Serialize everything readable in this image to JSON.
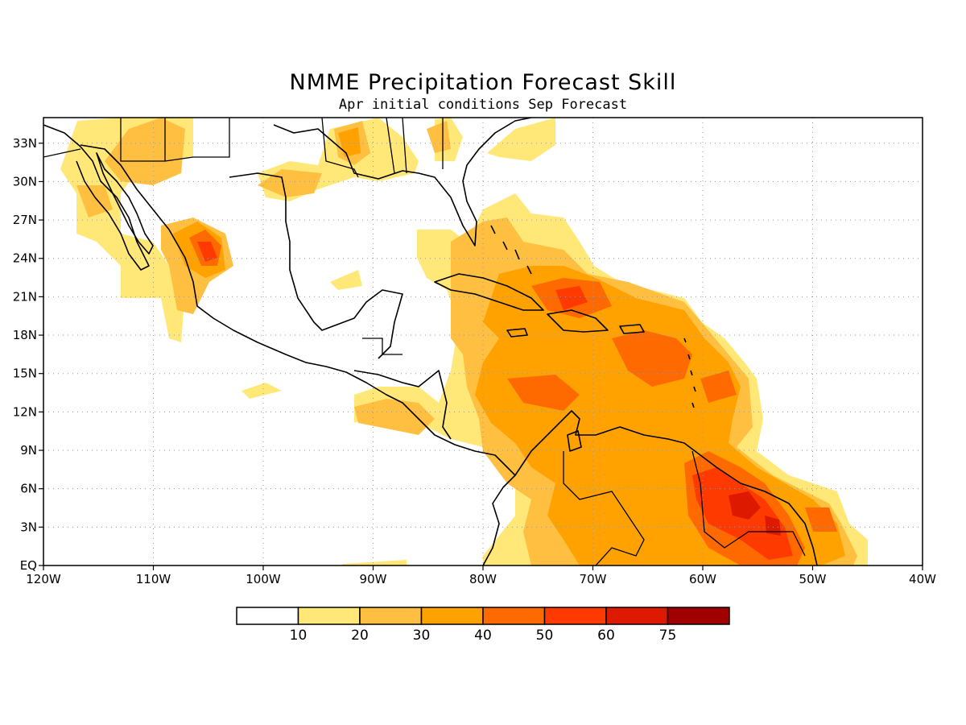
{
  "title": "NMME Precipitation Forecast Skill",
  "subtitle": "Apr initial conditions  Sep Forecast",
  "map": {
    "lon_range": [
      -120,
      -40
    ],
    "lat_range": [
      0,
      35
    ],
    "x_ticks": [
      {
        "lon": -120,
        "label": "120W"
      },
      {
        "lon": -110,
        "label": "110W"
      },
      {
        "lon": -100,
        "label": "100W"
      },
      {
        "lon": -90,
        "label": "90W"
      },
      {
        "lon": -80,
        "label": "80W"
      },
      {
        "lon": -70,
        "label": "70W"
      },
      {
        "lon": -60,
        "label": "60W"
      },
      {
        "lon": -50,
        "label": "50W"
      },
      {
        "lon": -40,
        "label": "40W"
      }
    ],
    "y_ticks": [
      {
        "lat": 0,
        "label": "EQ"
      },
      {
        "lat": 3,
        "label": "3N"
      },
      {
        "lat": 6,
        "label": "6N"
      },
      {
        "lat": 9,
        "label": "9N"
      },
      {
        "lat": 12,
        "label": "12N"
      },
      {
        "lat": 15,
        "label": "15N"
      },
      {
        "lat": 18,
        "label": "18N"
      },
      {
        "lat": 21,
        "label": "21N"
      },
      {
        "lat": 24,
        "label": "24N"
      },
      {
        "lat": 27,
        "label": "27N"
      },
      {
        "lat": 30,
        "label": "30N"
      },
      {
        "lat": 33,
        "label": "33N"
      }
    ]
  },
  "colorbar": {
    "colors": [
      "#ffffff",
      "#ffe878",
      "#ffbf40",
      "#ffa200",
      "#ff6a00",
      "#ff3a00",
      "#dd1a00",
      "#a00000"
    ],
    "labels": [
      "10",
      "20",
      "30",
      "40",
      "50",
      "60",
      "75"
    ]
  },
  "level_colors": {
    "l10": "#ffe878",
    "l20": "#ffbf40",
    "l30": "#ffa200",
    "l40": "#ff6a00",
    "l50": "#ff3a00",
    "l60": "#dd1a00"
  }
}
